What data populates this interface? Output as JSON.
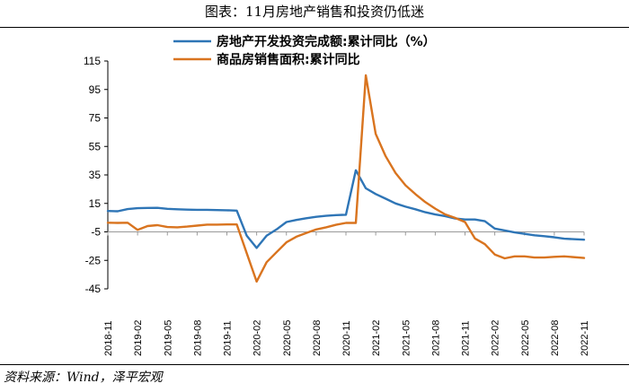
{
  "title": "图表：11月房地产销售和投资仍低迷",
  "source": "资料来源：Wind，泽平宏观",
  "chart_data": {
    "type": "line",
    "title": "图表：11月房地产销售和投资仍低迷",
    "xlabel": "",
    "ylabel": "",
    "ylim": [
      -45,
      115
    ],
    "yticks": [
      115,
      95,
      75,
      55,
      35,
      15,
      -5,
      -25,
      -45
    ],
    "grid": false,
    "legend_position": "top",
    "x": [
      "2018-11",
      "2018-12",
      "2019-01",
      "2019-02",
      "2019-03",
      "2019-04",
      "2019-05",
      "2019-06",
      "2019-07",
      "2019-08",
      "2019-09",
      "2019-10",
      "2019-11",
      "2019-12",
      "2020-01",
      "2020-02",
      "2020-03",
      "2020-04",
      "2020-05",
      "2020-06",
      "2020-07",
      "2020-08",
      "2020-09",
      "2020-10",
      "2020-11",
      "2020-12",
      "2021-01",
      "2021-02",
      "2021-03",
      "2021-04",
      "2021-05",
      "2021-06",
      "2021-07",
      "2021-08",
      "2021-09",
      "2021-10",
      "2021-11",
      "2021-12",
      "2022-01",
      "2022-02",
      "2022-03",
      "2022-04",
      "2022-05",
      "2022-06",
      "2022-07",
      "2022-08",
      "2022-09",
      "2022-10",
      "2022-11"
    ],
    "xticks": [
      "2018-11",
      "2019-02",
      "2019-05",
      "2019-08",
      "2019-11",
      "2020-02",
      "2020-05",
      "2020-08",
      "2020-11",
      "2021-02",
      "2021-05",
      "2021-08",
      "2021-11",
      "2022-02",
      "2022-05",
      "2022-08",
      "2022-11"
    ],
    "series": [
      {
        "name": "房地产开发投资完成额:累计同比（%）",
        "color": "#2e75b6",
        "values": [
          9.7,
          9.5,
          11.0,
          11.6,
          11.8,
          11.9,
          11.2,
          10.9,
          10.6,
          10.5,
          10.5,
          10.3,
          10.2,
          9.9,
          -7.7,
          -16.3,
          -7.7,
          -3.3,
          1.9,
          3.4,
          4.6,
          5.6,
          6.3,
          6.8,
          7.0,
          38.3,
          25.6,
          21.6,
          18.3,
          15.0,
          12.7,
          10.9,
          8.8,
          7.2,
          6.1,
          4.4,
          3.7,
          3.7,
          2.5,
          -2.7,
          -4.0,
          -5.4,
          -6.4,
          -7.4,
          -8.0,
          -8.8,
          -9.8,
          -10.5,
          null
        ],
        "data_note": "values aligned to x; last value at 2022-11"
      },
      {
        "name": "商品房销售面积:累计同比",
        "color": "#d9741f",
        "values": [
          1.4,
          1.3,
          1.4,
          -3.6,
          -0.9,
          -0.3,
          -1.6,
          -1.8,
          -1.3,
          -0.6,
          0.1,
          0.1,
          0.2,
          0.2,
          -20.0,
          -39.9,
          -26.3,
          -19.3,
          -12.3,
          -8.4,
          -5.8,
          -3.3,
          -1.8,
          0.0,
          1.3,
          1.3,
          104.9,
          63.8,
          48.1,
          36.3,
          27.7,
          21.5,
          15.9,
          11.3,
          7.3,
          4.8,
          1.9,
          -9.6,
          -13.6,
          -20.9,
          -23.6,
          -22.2,
          -22.2,
          -23.0,
          -23.0,
          -22.5,
          -22.2,
          -23.3,
          null
        ]
      }
    ]
  }
}
